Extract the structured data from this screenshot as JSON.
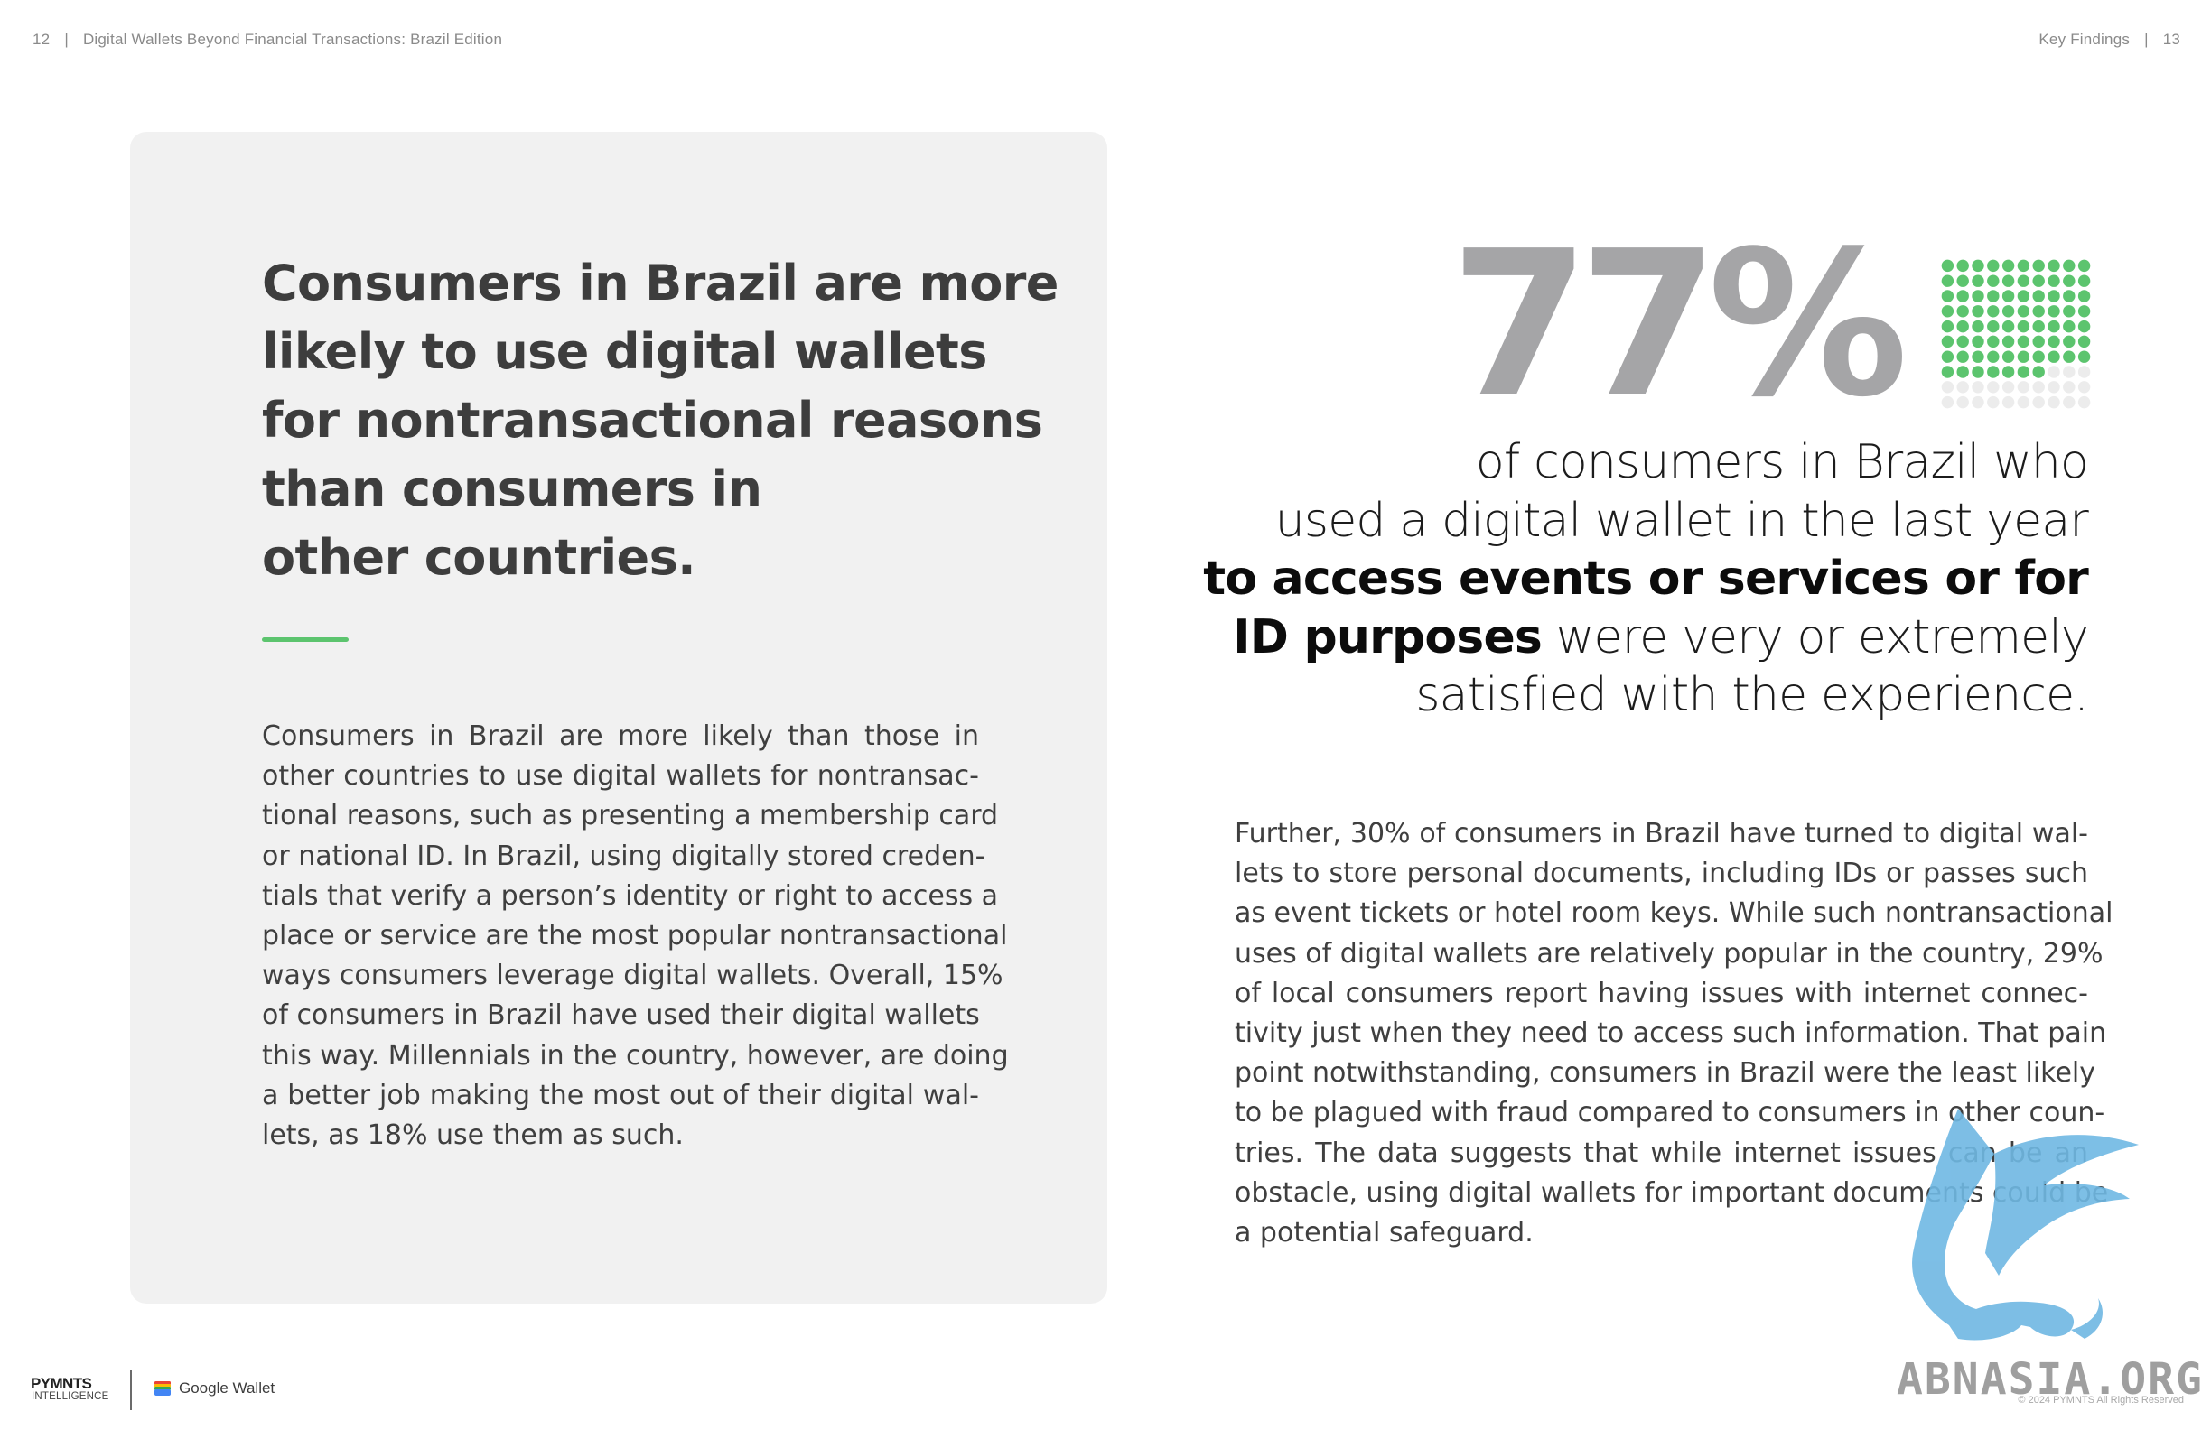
{
  "header": {
    "left_page_number": "12",
    "left_separator": "|",
    "left_title": "Digital Wallets Beyond Financial Transactions: Brazil Edition",
    "right_section": "Key Findings",
    "right_separator": "|",
    "right_page_number": "13"
  },
  "headline": {
    "lines": [
      "Consumers in Brazil are more",
      "likely to use digital wallets",
      "for nontransactional reasons",
      "than consumers in",
      "other countries."
    ]
  },
  "left_body": {
    "lines": [
      "Consumers in Brazil are more likely than those in",
      "other countries to use digital wallets for nontransac-",
      "tional reasons, such as presenting a membership card",
      "or national ID. In Brazil, using digitally stored creden-",
      "tials that verify a person’s identity or right to access a",
      "place or service are the most popular nontransactional",
      "ways consumers leverage digital wallets. Overall, 15%",
      "of consumers in Brazil have used their digital wallets",
      "this way. Millennials in the country, however, are doing",
      "a better job making the most out of their digital wal-",
      "lets, as 18% use them as such."
    ]
  },
  "stat": {
    "value": "77%",
    "percent": 77,
    "dot_grid": {
      "rows": 10,
      "cols": 10,
      "filled_color": "#5cc46e",
      "empty_color": "#ececec"
    },
    "line1": "of consumers in Brazil who",
    "line2": "used a digital wallet in the last year",
    "line3_bold": "to access events or services or for",
    "line4_bold": "ID purposes",
    "line4_rest": " were very or extremely",
    "line5": "satisfied with the experience."
  },
  "right_body": {
    "lines": [
      "Further, 30% of consumers in Brazil have turned to digital wal-",
      "lets to store personal documents, including IDs or passes such",
      "as event tickets or hotel room keys. While such nontransactional",
      "uses of digital wallets are relatively popular in the country, 29%",
      "of local consumers report having issues with internet connec-",
      "tivity just when they need to access such information. That pain",
      "point notwithstanding, consumers in Brazil were the least likely",
      "to be plagued with fraud compared to consumers in other coun-",
      "tries. The data suggests that while internet issues can be an",
      "obstacle, using digital wallets for important documents could be",
      "a potential safeguard."
    ]
  },
  "footer": {
    "brand": "PYMNTS",
    "brand_sub": "INTELLIGENCE",
    "partner": "Google Wallet",
    "copyright": "© 2024 PYMNTS All Rights Reserved"
  },
  "watermark": {
    "text": "ABNASIA.ORG"
  },
  "colors": {
    "accent_green": "#5cc46e",
    "stat_gray": "#a5a5a7",
    "card_bg": "#f1f1f1"
  }
}
